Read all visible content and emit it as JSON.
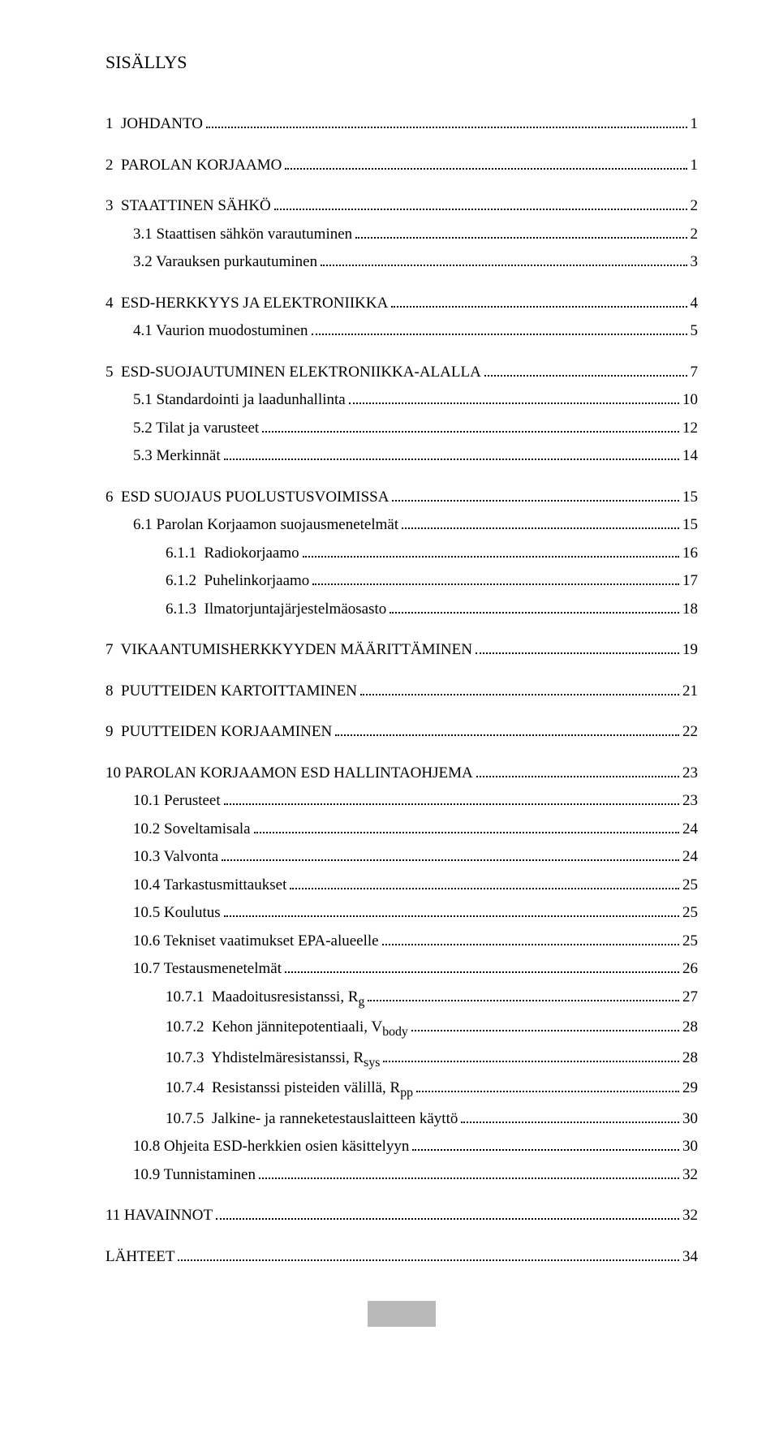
{
  "title": "SISÄLLYS",
  "entries": [
    {
      "label": "1  JOHDANTO",
      "page": "1",
      "level": 0,
      "major": true
    },
    {
      "label": "2  PAROLAN KORJAAMO",
      "page": "1",
      "level": 0,
      "major": true
    },
    {
      "label": "3  STAATTINEN SÄHKÖ",
      "page": "2",
      "level": 0,
      "major": true
    },
    {
      "label": "3.1 Staattisen sähkön varautuminen",
      "page": "2",
      "level": 1
    },
    {
      "label": "3.2 Varauksen purkautuminen",
      "page": "3",
      "level": 1
    },
    {
      "label": "4  ESD-HERKKYYS JA ELEKTRONIIKKA",
      "page": "4",
      "level": 0,
      "major": true
    },
    {
      "label": "4.1 Vaurion muodostuminen",
      "page": "5",
      "level": 1
    },
    {
      "label": "5  ESD-SUOJAUTUMINEN ELEKTRONIIKKA-ALALLA",
      "page": "7",
      "level": 0,
      "major": true
    },
    {
      "label": "5.1 Standardointi ja laadunhallinta",
      "page": "10",
      "level": 1
    },
    {
      "label": "5.2 Tilat ja varusteet",
      "page": "12",
      "level": 1
    },
    {
      "label": "5.3 Merkinnät",
      "page": "14",
      "level": 1
    },
    {
      "label": "6  ESD SUOJAUS PUOLUSTUSVOIMISSA",
      "page": "15",
      "level": 0,
      "major": true
    },
    {
      "label": "6.1 Parolan Korjaamon suojausmenetelmät",
      "page": "15",
      "level": 1
    },
    {
      "label": "6.1.1  Radiokorjaamo",
      "page": "16",
      "level": 2
    },
    {
      "label": "6.1.2  Puhelinkorjaamo",
      "page": "17",
      "level": 2
    },
    {
      "label": "6.1.3  Ilmatorjuntajärjestelmäosasto",
      "page": "18",
      "level": 2
    },
    {
      "label": "7  VIKAANTUMISHERKKYYDEN MÄÄRITTÄMINEN",
      "page": "19",
      "level": 0,
      "major": true
    },
    {
      "label": "8  PUUTTEIDEN KARTOITTAMINEN",
      "page": "21",
      "level": 0,
      "major": true
    },
    {
      "label": "9  PUUTTEIDEN KORJAAMINEN",
      "page": "22",
      "level": 0,
      "major": true
    },
    {
      "label": "10 PAROLAN KORJAAMON ESD HALLINTAOHJEMA",
      "page": "23",
      "level": 0,
      "major": true
    },
    {
      "label": "10.1 Perusteet",
      "page": "23",
      "level": 1
    },
    {
      "label": "10.2 Soveltamisala",
      "page": "24",
      "level": 1
    },
    {
      "label": "10.3 Valvonta",
      "page": "24",
      "level": 1
    },
    {
      "label": "10.4 Tarkastusmittaukset",
      "page": "25",
      "level": 1
    },
    {
      "label": "10.5 Koulutus",
      "page": "25",
      "level": 1
    },
    {
      "label": "10.6 Tekniset vaatimukset EPA-alueelle",
      "page": "25",
      "level": 1
    },
    {
      "label": "10.7 Testausmenetelmät",
      "page": "26",
      "level": 1
    },
    {
      "label": "10.7.1  Maadoitusresistanssi, R",
      "sub": "g",
      "page": "27",
      "level": 2
    },
    {
      "label": "10.7.2  Kehon jännitepotentiaali, V",
      "sub": "body",
      "page": "28",
      "level": 2
    },
    {
      "label": "10.7.3  Yhdistelmäresistanssi, R",
      "sub": "sys",
      "page": "28",
      "level": 2
    },
    {
      "label": "10.7.4  Resistanssi pisteiden välillä, R",
      "sub": "pp",
      "page": "29",
      "level": 2
    },
    {
      "label": "10.7.5  Jalkine- ja ranneketestauslaitteen käyttö",
      "page": "30",
      "level": 2
    },
    {
      "label": "10.8 Ohjeita ESD-herkkien osien käsittelyyn",
      "page": "30",
      "level": 1
    },
    {
      "label": "10.9 Tunnistaminen",
      "page": "32",
      "level": 1
    },
    {
      "label": "11 HAVAINNOT",
      "page": "32",
      "level": 0,
      "major": true
    },
    {
      "label": "LÄHTEET",
      "page": "34",
      "level": 0,
      "major": true
    }
  ]
}
